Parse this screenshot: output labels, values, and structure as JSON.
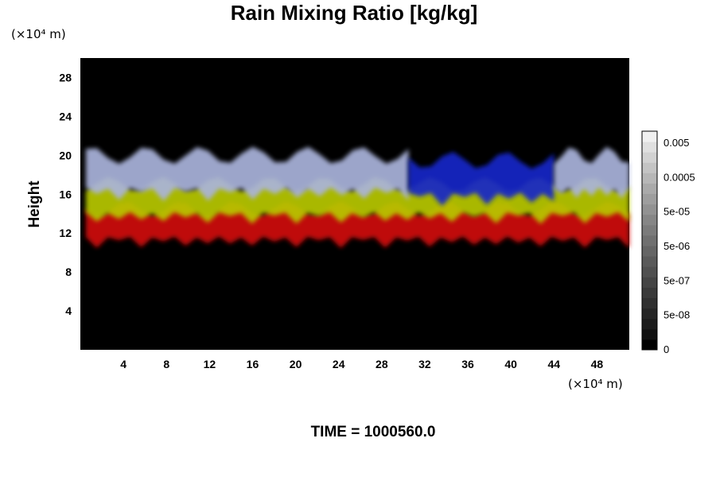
{
  "chart_data": {
    "type": "heatmap",
    "title": "Rain Mixing Ratio [kg/kg]",
    "ylabel": "Height",
    "xunit": "(×10⁴ m)",
    "yunit": "(×10⁴ m)",
    "xlim": [
      0,
      51
    ],
    "ylim": [
      0,
      30
    ],
    "xticks": [
      "4",
      "8",
      "12",
      "16",
      "20",
      "24",
      "28",
      "32",
      "36",
      "40",
      "44",
      "48"
    ],
    "yticks": [
      "4",
      "8",
      "12",
      "16",
      "20",
      "24",
      "28"
    ],
    "colorbar": {
      "labels": [
        "0.005",
        "0.0005",
        "5e-05",
        "5e-06",
        "5e-07",
        "5e-08",
        "0"
      ],
      "colors": [
        "#000000",
        "#111111",
        "#1c1c1c",
        "#262626",
        "#303030",
        "#3a3a3a",
        "#454545",
        "#505050",
        "#5a5a5a",
        "#656565",
        "#707070",
        "#7b7b7b",
        "#868686",
        "#929292",
        "#9e9e9e",
        "#aaaaaa",
        "#b7b7b7",
        "#c4c4c4",
        "#d2d2d2",
        "#e0e0e0",
        "#f0f0f0"
      ]
    },
    "bands": [
      {
        "color": "#d01010",
        "x": [
          0.5,
          51
        ],
        "y": [
          11.5,
          14.5
        ]
      },
      {
        "color": "#b8c800",
        "x": [
          0.5,
          51
        ],
        "y": [
          14,
          17
        ]
      },
      {
        "color": "#aab4dc",
        "x": [
          0.5,
          30.5
        ],
        "y": [
          16.5,
          20
        ]
      },
      {
        "color": "#1428c8",
        "x": [
          30.5,
          44
        ],
        "y": [
          16,
          19.5
        ]
      },
      {
        "color": "#aab4dc",
        "x": [
          44,
          51
        ],
        "y": [
          16.5,
          20
        ]
      }
    ],
    "footer": "TIME = 1000560.0"
  }
}
